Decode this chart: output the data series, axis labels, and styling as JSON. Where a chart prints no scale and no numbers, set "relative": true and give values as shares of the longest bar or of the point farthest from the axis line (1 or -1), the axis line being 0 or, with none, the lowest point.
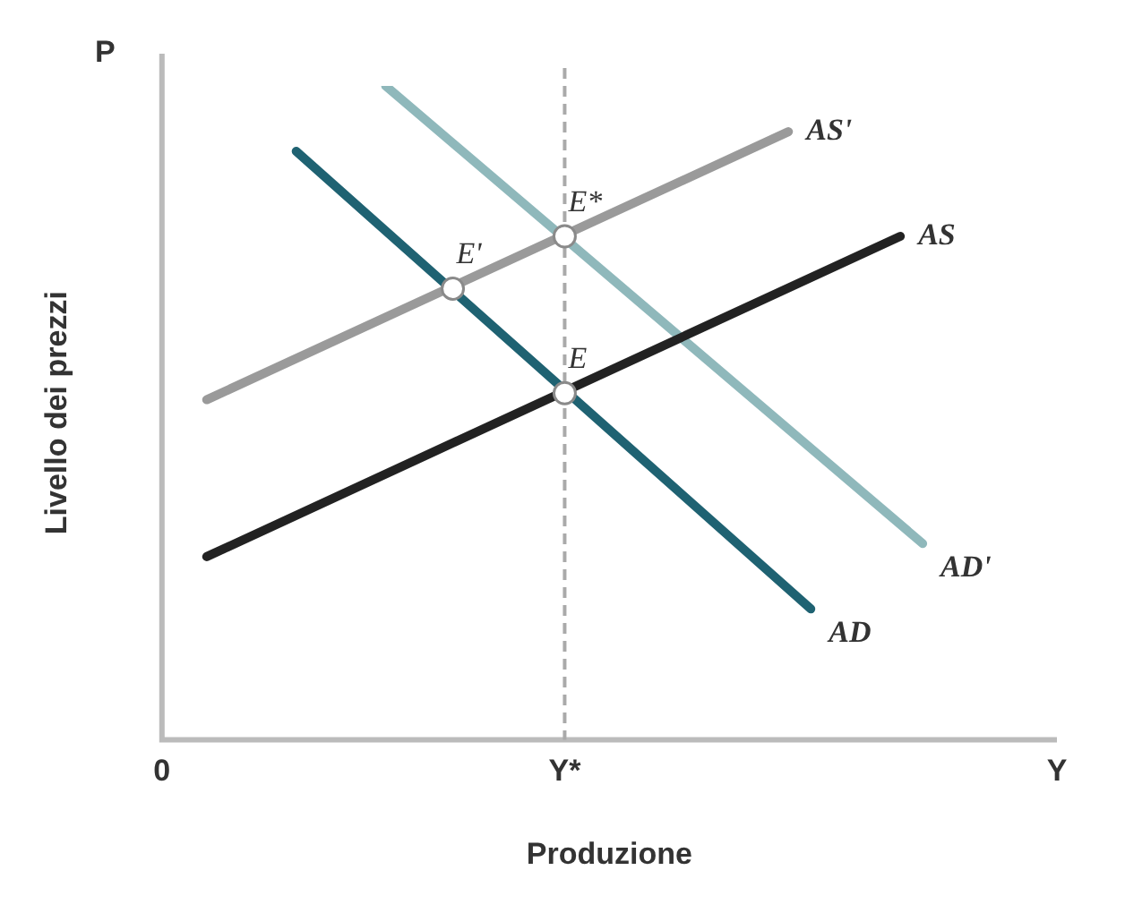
{
  "chart_data": {
    "type": "line",
    "relative": true,
    "xlabel": "Produzione",
    "ylabel": "Livello dei prezzi",
    "grid": false,
    "legend": false,
    "marker": "none",
    "line_style": "solid",
    "categories": [
      "0",
      null,
      null,
      null,
      null,
      null,
      null,
      null,
      null,
      null,
      null,
      null,
      null,
      null,
      null,
      null,
      null,
      null,
      "Y*",
      null,
      null,
      null,
      null,
      null,
      null,
      null,
      null,
      null,
      null,
      null,
      null,
      null,
      null,
      null,
      null,
      null,
      null,
      null,
      null,
      null,
      "Y"
    ],
    "series": [
      {
        "name": "AS",
        "color": "#222222",
        "values": [
          null,
          null,
          0.28,
          null,
          null,
          null,
          null,
          null,
          null,
          null,
          null,
          null,
          null,
          null,
          null,
          null,
          null,
          null,
          null,
          null,
          null,
          null,
          null,
          null,
          null,
          null,
          null,
          null,
          null,
          null,
          null,
          null,
          null,
          0.77,
          null,
          null,
          null,
          null,
          null,
          null,
          null
        ]
      },
      {
        "name": "AS'",
        "color": "#9a9a9a",
        "values": [
          null,
          null,
          0.52,
          null,
          null,
          null,
          null,
          null,
          null,
          null,
          null,
          null,
          null,
          null,
          null,
          null,
          null,
          null,
          null,
          null,
          null,
          null,
          null,
          null,
          null,
          null,
          null,
          null,
          0.93,
          null,
          null,
          null,
          null,
          null,
          null,
          null,
          null,
          null,
          null,
          null,
          null
        ]
      },
      {
        "name": "AD",
        "color": "#1f6272",
        "values": [
          null,
          null,
          null,
          null,
          null,
          null,
          0.9,
          null,
          null,
          null,
          null,
          null,
          null,
          null,
          null,
          null,
          null,
          null,
          null,
          null,
          null,
          null,
          null,
          null,
          null,
          null,
          null,
          null,
          null,
          0.2,
          null,
          null,
          null,
          null,
          null,
          null,
          null,
          null,
          null,
          null,
          null
        ]
      },
      {
        "name": "AD'",
        "color": "#8fb8bb",
        "values": [
          null,
          null,
          null,
          null,
          null,
          null,
          null,
          null,
          null,
          null,
          1,
          null,
          null,
          null,
          null,
          null,
          null,
          null,
          null,
          null,
          null,
          null,
          null,
          null,
          null,
          null,
          null,
          null,
          null,
          null,
          null,
          null,
          null,
          null,
          0.3,
          null,
          null,
          null,
          null,
          null,
          null
        ]
      },
      {
        "type": "scatter",
        "marker": "circle",
        "color": "#ffffff",
        "values": [
          null,
          null,
          null,
          null,
          null,
          null,
          null,
          null,
          null,
          null,
          null,
          null,
          null,
          0.69,
          null,
          null,
          null,
          null,
          0.77,
          null,
          null,
          null,
          null,
          null,
          null,
          null,
          null,
          null,
          null,
          null,
          null,
          null,
          null,
          null,
          null,
          null,
          null,
          null,
          null,
          null,
          null
        ]
      },
      {
        "type": "scatter",
        "marker": "circle",
        "color": "#ffffff",
        "values": [
          null,
          null,
          null,
          null,
          null,
          null,
          null,
          null,
          null,
          null,
          null,
          null,
          null,
          null,
          null,
          null,
          null,
          null,
          0.53,
          null,
          null,
          null,
          null,
          null,
          null,
          null,
          null,
          null,
          null,
          null,
          null,
          null,
          null,
          null,
          null,
          null,
          null,
          null,
          null,
          null,
          null
        ]
      }
    ],
    "ref_lines": [
      {
        "axis": "x",
        "value": "Y*",
        "color": "#aaaaaa",
        "line_style": "dashed"
      }
    ],
    "annotations": [
      "P",
      {
        "text": "E*",
        "x": "Y*",
        "y": 0.77
      },
      {
        "text": "E'",
        "y": 0.69
      },
      {
        "text": "E",
        "x": "Y*",
        "y": 0.53
      }
    ]
  }
}
